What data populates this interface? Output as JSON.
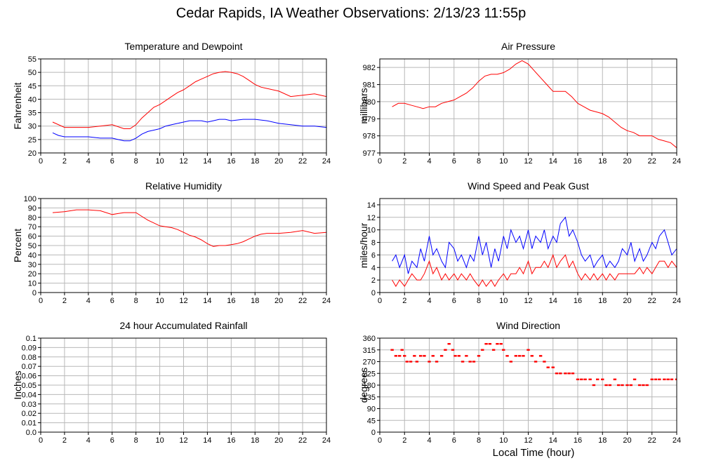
{
  "title": "Cedar Rapids, IA Weather Observations: 2/13/23 11:55p",
  "xlabel_bottom": "Local Time (hour)",
  "chart_data": [
    {
      "type": "line",
      "title": "Temperature and Dewpoint",
      "ylabel": "Fahrenheit",
      "xlim": [
        0,
        24
      ],
      "ylim": [
        20,
        55
      ],
      "yticks": [
        20,
        25,
        30,
        35,
        40,
        45,
        50,
        55
      ],
      "xticks": [
        0,
        2,
        4,
        6,
        8,
        10,
        12,
        14,
        16,
        18,
        20,
        22,
        24
      ],
      "grid": true,
      "series": [
        {
          "color": "#ff0000",
          "x": [
            1.0,
            2.0,
            3.0,
            4.0,
            5.0,
            6.0,
            7.0,
            7.5,
            8.0,
            8.5,
            9.0,
            9.5,
            10.0,
            10.5,
            11.0,
            11.5,
            12.0,
            12.5,
            13.0,
            13.5,
            14.0,
            14.5,
            15.0,
            15.5,
            16.0,
            16.5,
            17.0,
            17.5,
            18.0,
            18.5,
            19.0,
            20.0,
            21.0,
            22.0,
            23.0,
            24.0
          ],
          "y": [
            31.5,
            29.5,
            29.5,
            29.5,
            30.0,
            30.5,
            29.0,
            29.0,
            30.5,
            33.0,
            35.0,
            37.0,
            38.0,
            39.5,
            41.0,
            42.5,
            43.5,
            45.0,
            46.5,
            47.5,
            48.5,
            49.5,
            50.0,
            50.3,
            50.0,
            49.5,
            48.5,
            47.0,
            45.5,
            44.5,
            44.0,
            43.0,
            41.0,
            41.5,
            42.0,
            41.0
          ]
        },
        {
          "color": "#0000ff",
          "x": [
            1.0,
            1.5,
            2.0,
            3.0,
            4.0,
            5.0,
            6.0,
            6.5,
            7.0,
            7.5,
            8.0,
            8.5,
            9.0,
            9.5,
            10.0,
            10.5,
            11.0,
            11.5,
            12.0,
            12.5,
            13.0,
            13.5,
            14.0,
            14.5,
            15.0,
            15.5,
            16.0,
            17.0,
            18.0,
            19.0,
            20.0,
            21.0,
            22.0,
            23.0,
            24.0
          ],
          "y": [
            27.5,
            26.5,
            26.0,
            26.0,
            26.0,
            25.5,
            25.5,
            25.0,
            24.5,
            24.5,
            25.5,
            27.0,
            28.0,
            28.5,
            29.0,
            30.0,
            30.5,
            31.0,
            31.5,
            32.0,
            32.0,
            32.0,
            31.5,
            32.0,
            32.5,
            32.5,
            32.0,
            32.5,
            32.5,
            32.0,
            31.0,
            30.5,
            30.0,
            30.0,
            29.5
          ]
        }
      ]
    },
    {
      "type": "line",
      "title": "Air Pressure",
      "ylabel": "millibars",
      "xlim": [
        0,
        24
      ],
      "ylim": [
        977,
        982.5
      ],
      "yticks": [
        977,
        978,
        979,
        980,
        981,
        982
      ],
      "xticks": [
        0,
        2,
        4,
        6,
        8,
        10,
        12,
        14,
        16,
        18,
        20,
        22,
        24
      ],
      "grid": true,
      "series": [
        {
          "color": "#ff0000",
          "x": [
            1.0,
            1.5,
            2.0,
            2.5,
            3.0,
            3.5,
            4.0,
            4.5,
            5.0,
            5.5,
            6.0,
            6.5,
            7.0,
            7.5,
            8.0,
            8.5,
            9.0,
            9.5,
            10.0,
            10.5,
            11.0,
            11.5,
            12.0,
            12.5,
            13.0,
            13.5,
            14.0,
            14.5,
            15.0,
            15.5,
            16.0,
            16.5,
            17.0,
            17.5,
            18.0,
            18.5,
            19.0,
            19.5,
            20.0,
            20.5,
            21.0,
            21.5,
            22.0,
            22.5,
            23.0,
            23.5,
            24.0
          ],
          "y": [
            979.7,
            979.9,
            979.9,
            979.8,
            979.7,
            979.6,
            979.7,
            979.7,
            979.9,
            980.0,
            980.1,
            980.3,
            980.5,
            980.8,
            981.2,
            981.5,
            981.6,
            981.6,
            981.7,
            981.9,
            982.2,
            982.4,
            982.2,
            981.8,
            981.4,
            981.0,
            980.6,
            980.6,
            980.6,
            980.3,
            979.9,
            979.7,
            979.5,
            979.4,
            979.3,
            979.1,
            978.8,
            978.5,
            978.3,
            978.2,
            978.0,
            978.0,
            978.0,
            977.8,
            977.7,
            977.6,
            977.3
          ]
        }
      ]
    },
    {
      "type": "line",
      "title": "Relative Humidity",
      "ylabel": "Percent",
      "xlim": [
        0,
        24
      ],
      "ylim": [
        0,
        100
      ],
      "yticks": [
        0,
        10,
        20,
        30,
        40,
        50,
        60,
        70,
        80,
        90,
        100
      ],
      "xticks": [
        0,
        2,
        4,
        6,
        8,
        10,
        12,
        14,
        16,
        18,
        20,
        22,
        24
      ],
      "grid": true,
      "series": [
        {
          "color": "#ff0000",
          "x": [
            1.0,
            2.0,
            3.0,
            4.0,
            5.0,
            6.0,
            6.5,
            7.0,
            8.0,
            8.5,
            9.0,
            9.5,
            10.0,
            10.5,
            11.0,
            11.5,
            12.0,
            12.5,
            13.0,
            13.5,
            14.0,
            14.5,
            15.0,
            15.5,
            16.0,
            16.5,
            17.0,
            17.5,
            18.0,
            18.5,
            19.0,
            20.0,
            21.0,
            22.0,
            23.0,
            24.0
          ],
          "y": [
            85,
            86,
            88,
            88,
            87,
            83,
            84,
            85,
            85,
            81,
            77,
            74,
            71,
            70,
            69,
            67,
            64,
            61,
            59,
            56,
            52,
            49,
            50,
            50,
            51,
            52,
            54,
            57,
            60,
            62,
            63,
            63,
            64,
            66,
            63,
            64
          ]
        }
      ]
    },
    {
      "type": "line",
      "title": "Wind Speed and Peak Gust",
      "ylabel": "miles/hour",
      "xlim": [
        0,
        24
      ],
      "ylim": [
        0,
        15
      ],
      "yticks": [
        0,
        2,
        4,
        6,
        8,
        10,
        12,
        14
      ],
      "xticks": [
        0,
        2,
        4,
        6,
        8,
        10,
        12,
        14,
        16,
        18,
        20,
        22,
        24
      ],
      "grid": true,
      "series": [
        {
          "color": "#0000ff",
          "x": [
            1.0,
            1.3,
            1.6,
            2.0,
            2.3,
            2.6,
            3.0,
            3.3,
            3.6,
            4.0,
            4.3,
            4.6,
            5.0,
            5.3,
            5.6,
            6.0,
            6.3,
            6.6,
            7.0,
            7.3,
            7.6,
            8.0,
            8.3,
            8.6,
            9.0,
            9.3,
            9.6,
            10.0,
            10.3,
            10.6,
            11.0,
            11.3,
            11.6,
            12.0,
            12.3,
            12.6,
            13.0,
            13.3,
            13.6,
            14.0,
            14.3,
            14.6,
            15.0,
            15.3,
            15.6,
            16.0,
            16.3,
            16.6,
            17.0,
            17.3,
            17.6,
            18.0,
            18.3,
            18.6,
            19.0,
            19.3,
            19.6,
            20.0,
            20.3,
            20.6,
            21.0,
            21.3,
            21.6,
            22.0,
            22.3,
            22.6,
            23.0,
            23.3,
            23.6,
            24.0
          ],
          "y": [
            5,
            6,
            4,
            6,
            3,
            5,
            4,
            7,
            5,
            9,
            6,
            7,
            5,
            4,
            8,
            7,
            5,
            6,
            4,
            6,
            5,
            9,
            6,
            8,
            4,
            7,
            5,
            9,
            7,
            10,
            8,
            9,
            7,
            10,
            7,
            9,
            8,
            10,
            7,
            9,
            8,
            11,
            12,
            9,
            10,
            8,
            6,
            5,
            6,
            4,
            5,
            6,
            4,
            5,
            4,
            5,
            7,
            6,
            8,
            5,
            7,
            5,
            6,
            8,
            7,
            9,
            10,
            8,
            6,
            7
          ]
        },
        {
          "color": "#ff0000",
          "x": [
            1.0,
            1.3,
            1.6,
            2.0,
            2.3,
            2.6,
            3.0,
            3.3,
            3.6,
            4.0,
            4.3,
            4.6,
            5.0,
            5.3,
            5.6,
            6.0,
            6.3,
            6.6,
            7.0,
            7.3,
            7.6,
            8.0,
            8.3,
            8.6,
            9.0,
            9.3,
            9.6,
            10.0,
            10.3,
            10.6,
            11.0,
            11.3,
            11.6,
            12.0,
            12.3,
            12.6,
            13.0,
            13.3,
            13.6,
            14.0,
            14.3,
            14.6,
            15.0,
            15.3,
            15.6,
            16.0,
            16.3,
            16.6,
            17.0,
            17.3,
            17.6,
            18.0,
            18.3,
            18.6,
            19.0,
            19.3,
            19.6,
            20.0,
            20.3,
            20.6,
            21.0,
            21.3,
            21.6,
            22.0,
            22.3,
            22.6,
            23.0,
            23.3,
            23.6,
            24.0
          ],
          "y": [
            2,
            1,
            2,
            1,
            2,
            3,
            2,
            2,
            3,
            5,
            3,
            4,
            2,
            3,
            2,
            3,
            2,
            3,
            2,
            3,
            2,
            1,
            2,
            1,
            2,
            1,
            2,
            3,
            2,
            3,
            3,
            4,
            3,
            5,
            3,
            4,
            4,
            5,
            4,
            6,
            4,
            5,
            6,
            4,
            5,
            3,
            2,
            3,
            2,
            3,
            2,
            3,
            2,
            3,
            2,
            3,
            3,
            3,
            3,
            3,
            4,
            3,
            4,
            3,
            4,
            5,
            5,
            4,
            5,
            4
          ]
        }
      ]
    },
    {
      "type": "line",
      "title": "24 hour Accumulated Rainfall",
      "ylabel": "Inches",
      "xlim": [
        0,
        24
      ],
      "ylim": [
        0,
        0.1
      ],
      "yticks": [
        0.0,
        0.01,
        0.02,
        0.03,
        0.04,
        0.05,
        0.06,
        0.07,
        0.08,
        0.09,
        0.1
      ],
      "ytick_labels": [
        "0.0",
        "0.01",
        "0.02",
        "0.03",
        "0.04",
        "0.05",
        "0.06",
        "0.07",
        "0.08",
        "0.09",
        "0.1"
      ],
      "xticks": [
        0,
        2,
        4,
        6,
        8,
        10,
        12,
        14,
        16,
        18,
        20,
        22,
        24
      ],
      "grid": true,
      "series": [
        {
          "color": "#ff0000",
          "x": [
            1.0,
            24.0
          ],
          "y": [
            0.0,
            0.0
          ]
        }
      ]
    },
    {
      "type": "scatter",
      "title": "Wind Direction",
      "ylabel": "degrees",
      "xlim": [
        0,
        24
      ],
      "ylim": [
        0,
        360
      ],
      "yticks": [
        0,
        45,
        90,
        135,
        180,
        225,
        270,
        315,
        360
      ],
      "xticks": [
        0,
        2,
        4,
        6,
        8,
        10,
        12,
        14,
        16,
        18,
        20,
        22,
        24
      ],
      "grid": true,
      "series": [
        {
          "color": "#ff0000",
          "x": [
            1.0,
            1.3,
            1.6,
            1.8,
            2.0,
            2.2,
            2.5,
            2.8,
            3.0,
            3.3,
            3.6,
            4.0,
            4.3,
            4.6,
            5.0,
            5.3,
            5.6,
            5.9,
            6.1,
            6.4,
            6.7,
            7.0,
            7.3,
            7.6,
            8.0,
            8.3,
            8.6,
            8.9,
            9.2,
            9.5,
            9.8,
            10.0,
            10.3,
            10.6,
            11.0,
            11.3,
            11.6,
            12.0,
            12.3,
            12.6,
            13.0,
            13.3,
            13.6,
            14.0,
            14.3,
            14.6,
            15.0,
            15.3,
            15.6,
            16.0,
            16.3,
            16.6,
            17.0,
            17.3,
            17.6,
            18.0,
            18.3,
            18.6,
            19.0,
            19.3,
            19.6,
            20.0,
            20.3,
            20.6,
            21.0,
            21.3,
            21.6,
            22.0,
            22.3,
            22.6,
            23.0,
            23.3,
            23.6,
            24.0
          ],
          "y": [
            315,
            292,
            292,
            315,
            292,
            270,
            270,
            292,
            270,
            292,
            292,
            270,
            292,
            270,
            292,
            315,
            338,
            315,
            292,
            292,
            270,
            292,
            270,
            270,
            292,
            315,
            338,
            338,
            315,
            338,
            338,
            315,
            292,
            270,
            292,
            292,
            292,
            315,
            292,
            270,
            292,
            270,
            248,
            248,
            225,
            225,
            225,
            225,
            225,
            202,
            202,
            202,
            202,
            180,
            202,
            202,
            180,
            180,
            202,
            180,
            180,
            180,
            180,
            202,
            180,
            180,
            180,
            202,
            202,
            202,
            202,
            202,
            202,
            202
          ]
        }
      ]
    }
  ]
}
